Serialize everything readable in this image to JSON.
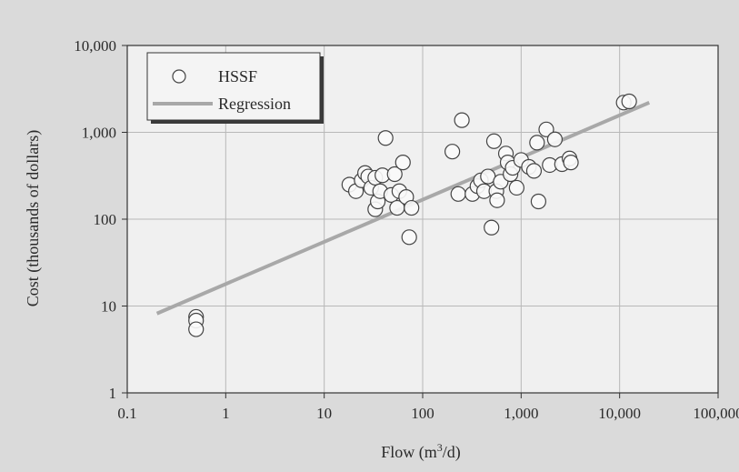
{
  "chart_data": {
    "type": "scatter",
    "title": "",
    "xlabel": "Flow (m",
    "xlabel_sup": "3",
    "xlabel_tail": "/d)",
    "ylabel": "Cost (thousands of dollars)",
    "x_scale": "log",
    "y_scale": "log",
    "xlim": [
      0.1,
      100000
    ],
    "ylim": [
      1,
      10000
    ],
    "grid": true,
    "legend_position": "top-left",
    "x_ticks": [
      {
        "value": 0.1,
        "label": "0.1"
      },
      {
        "value": 1,
        "label": "1"
      },
      {
        "value": 10,
        "label": "10"
      },
      {
        "value": 100,
        "label": "100"
      },
      {
        "value": 1000,
        "label": "1,000"
      },
      {
        "value": 10000,
        "label": "10,000"
      },
      {
        "value": 100000,
        "label": "100,000"
      }
    ],
    "y_ticks": [
      {
        "value": 1,
        "label": "1"
      },
      {
        "value": 10,
        "label": "10"
      },
      {
        "value": 100,
        "label": "100"
      },
      {
        "value": 1000,
        "label": "1,000"
      },
      {
        "value": 10000,
        "label": "10,000"
      }
    ],
    "series": [
      {
        "name": "HSSF",
        "kind": "scatter",
        "points": [
          [
            0.5,
            7.5
          ],
          [
            0.5,
            6.8
          ],
          [
            0.5,
            5.4
          ],
          [
            18,
            250
          ],
          [
            21,
            210
          ],
          [
            24,
            280
          ],
          [
            26,
            340
          ],
          [
            28,
            310
          ],
          [
            30,
            230
          ],
          [
            33,
            300
          ],
          [
            33,
            130
          ],
          [
            35,
            160
          ],
          [
            37,
            210
          ],
          [
            39,
            320
          ],
          [
            42,
            860
          ],
          [
            48,
            190
          ],
          [
            52,
            330
          ],
          [
            55,
            135
          ],
          [
            58,
            210
          ],
          [
            63,
            450
          ],
          [
            68,
            180
          ],
          [
            73,
            62
          ],
          [
            77,
            135
          ],
          [
            200,
            600
          ],
          [
            230,
            195
          ],
          [
            250,
            1380
          ],
          [
            320,
            195
          ],
          [
            360,
            240
          ],
          [
            390,
            280
          ],
          [
            420,
            210
          ],
          [
            460,
            310
          ],
          [
            500,
            80
          ],
          [
            530,
            790
          ],
          [
            560,
            210
          ],
          [
            570,
            165
          ],
          [
            620,
            270
          ],
          [
            700,
            570
          ],
          [
            730,
            450
          ],
          [
            780,
            330
          ],
          [
            820,
            390
          ],
          [
            900,
            230
          ],
          [
            1000,
            480
          ],
          [
            1200,
            400
          ],
          [
            1350,
            360
          ],
          [
            1450,
            760
          ],
          [
            1500,
            160
          ],
          [
            1800,
            1080
          ],
          [
            1950,
            420
          ],
          [
            2200,
            830
          ],
          [
            2600,
            430
          ],
          [
            3100,
            500
          ],
          [
            3200,
            450
          ],
          [
            11000,
            2200
          ],
          [
            12500,
            2270
          ]
        ]
      },
      {
        "name": "Regression",
        "kind": "line",
        "points": [
          [
            0.2,
            8.2
          ],
          [
            20000,
            2200
          ]
        ]
      }
    ]
  },
  "colors": {
    "background": "#dadada",
    "plot_background": "#f0f0f0",
    "grid": "#b8b8b8",
    "axis": "#333333",
    "marker_fill": "#fafafa",
    "marker_stroke": "#444444",
    "regression": "#a8a8a8"
  }
}
